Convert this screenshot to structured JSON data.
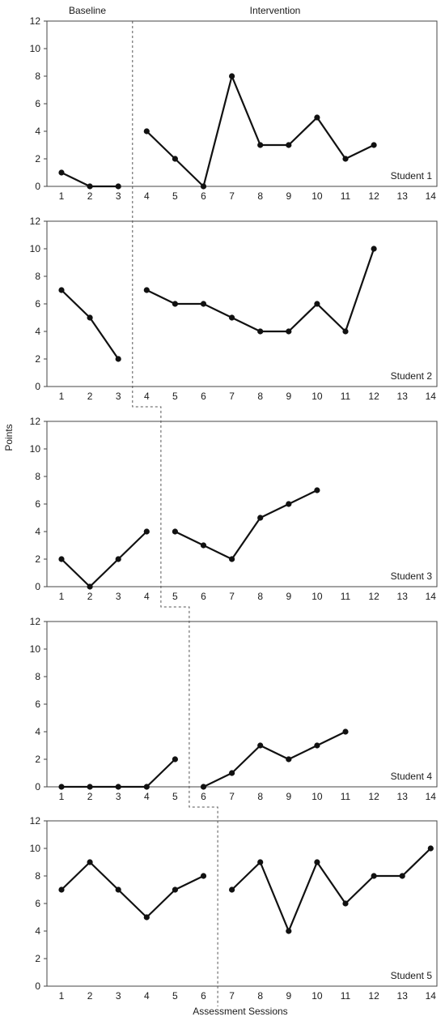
{
  "chart_data": {
    "type": "line",
    "phase_labels": [
      "Baseline",
      "Intervention"
    ],
    "ylabel": "Points",
    "xlabel": "Assessment Sessions",
    "x": [
      1,
      2,
      3,
      4,
      5,
      6,
      7,
      8,
      9,
      10,
      11,
      12,
      13,
      14
    ],
    "ylim": [
      0,
      12
    ],
    "yticks": [
      0,
      2,
      4,
      6,
      8,
      10,
      12
    ],
    "grid": false,
    "panels": [
      {
        "label": "Student 1",
        "baseline": {
          "x": [
            1,
            2,
            3
          ],
          "y": [
            1,
            0,
            0
          ]
        },
        "intervention": {
          "x": [
            4,
            5,
            6,
            7,
            8,
            9,
            10,
            11,
            12
          ],
          "y": [
            4,
            2,
            0,
            8,
            3,
            3,
            5,
            2,
            3
          ]
        }
      },
      {
        "label": "Student 2",
        "baseline": {
          "x": [
            1,
            2,
            3
          ],
          "y": [
            7,
            5,
            2
          ]
        },
        "intervention": {
          "x": [
            4,
            5,
            6,
            7,
            8,
            9,
            10,
            11,
            12
          ],
          "y": [
            7,
            6,
            6,
            5,
            4,
            4,
            6,
            4,
            10
          ]
        }
      },
      {
        "label": "Student 3",
        "baseline": {
          "x": [
            1,
            2,
            3,
            4
          ],
          "y": [
            2,
            0,
            2,
            4
          ]
        },
        "intervention": {
          "x": [
            5,
            6,
            7,
            8,
            9,
            10
          ],
          "y": [
            4,
            3,
            2,
            5,
            6,
            7
          ]
        }
      },
      {
        "label": "Student 4",
        "baseline": {
          "x": [
            1,
            2,
            3,
            4,
            5
          ],
          "y": [
            0,
            0,
            0,
            0,
            2
          ]
        },
        "intervention": {
          "x": [
            6,
            7,
            8,
            9,
            10,
            11
          ],
          "y": [
            0,
            1,
            3,
            2,
            3,
            4
          ]
        }
      },
      {
        "label": "Student 5",
        "baseline": {
          "x": [
            1,
            2,
            3,
            4,
            5,
            6
          ],
          "y": [
            7,
            9,
            7,
            5,
            7,
            8
          ]
        },
        "intervention": {
          "x": [
            7,
            8,
            9,
            10,
            11,
            12,
            13,
            14
          ],
          "y": [
            7,
            9,
            4,
            9,
            6,
            8,
            8,
            10
          ]
        }
      }
    ]
  }
}
